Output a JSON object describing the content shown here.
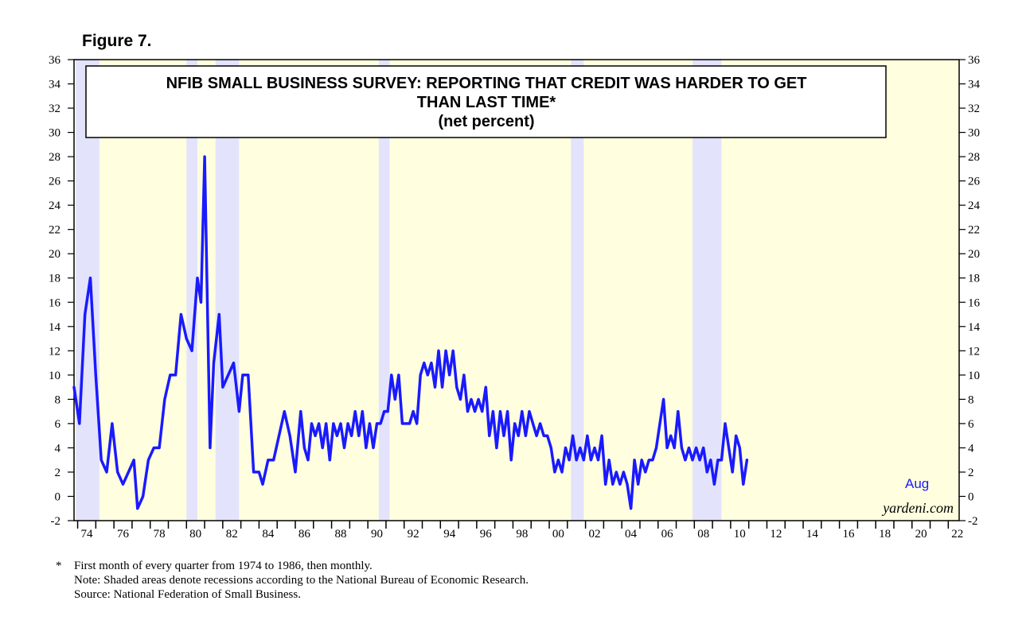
{
  "figure_label": "Figure 7.",
  "chart_data": {
    "type": "line",
    "title_lines": [
      "NFIB SMALL BUSINESS SURVEY: REPORTING THAT CREDIT WAS HARDER TO GET",
      "THAN LAST TIME*",
      "(net percent)"
    ],
    "ylim": [
      -2,
      36
    ],
    "yticks": [
      -2,
      0,
      2,
      4,
      6,
      8,
      10,
      12,
      14,
      16,
      18,
      20,
      22,
      24,
      26,
      28,
      30,
      32,
      34,
      36
    ],
    "xlim": [
      1973.8,
      2022.6
    ],
    "xtick_labels": [
      {
        "year": 1974,
        "label": "74"
      },
      {
        "year": 1976,
        "label": "76"
      },
      {
        "year": 1978,
        "label": "78"
      },
      {
        "year": 1980,
        "label": "80"
      },
      {
        "year": 1982,
        "label": "82"
      },
      {
        "year": 1984,
        "label": "84"
      },
      {
        "year": 1986,
        "label": "86"
      },
      {
        "year": 1988,
        "label": "88"
      },
      {
        "year": 1990,
        "label": "90"
      },
      {
        "year": 1992,
        "label": "92"
      },
      {
        "year": 1994,
        "label": "94"
      },
      {
        "year": 1996,
        "label": "96"
      },
      {
        "year": 1998,
        "label": "98"
      },
      {
        "year": 2000,
        "label": "00"
      },
      {
        "year": 2002,
        "label": "02"
      },
      {
        "year": 2004,
        "label": "04"
      },
      {
        "year": 2006,
        "label": "06"
      },
      {
        "year": 2008,
        "label": "08"
      },
      {
        "year": 2010,
        "label": "10"
      },
      {
        "year": 2012,
        "label": "12"
      },
      {
        "year": 2014,
        "label": "14"
      },
      {
        "year": 2016,
        "label": "16"
      },
      {
        "year": 2018,
        "label": "18"
      },
      {
        "year": 2020,
        "label": "20"
      },
      {
        "year": 2022,
        "label": "22"
      }
    ],
    "recessions": [
      [
        1973.9,
        1975.2
      ],
      [
        1980.0,
        1980.6
      ],
      [
        1981.6,
        1982.9
      ],
      [
        1990.6,
        1991.2
      ],
      [
        2001.2,
        2001.9
      ],
      [
        2007.9,
        2009.5
      ]
    ],
    "series": [
      {
        "name": "Credit harder to get (net percent)",
        "color": "#1a1aff",
        "points": [
          [
            1973.8,
            9
          ],
          [
            1974.1,
            6
          ],
          [
            1974.4,
            15
          ],
          [
            1974.7,
            18
          ],
          [
            1975.0,
            10
          ],
          [
            1975.3,
            3
          ],
          [
            1975.6,
            2
          ],
          [
            1975.9,
            6
          ],
          [
            1976.2,
            2
          ],
          [
            1976.5,
            1
          ],
          [
            1976.8,
            2
          ],
          [
            1977.1,
            3
          ],
          [
            1977.3,
            -1
          ],
          [
            1977.6,
            0
          ],
          [
            1977.9,
            3
          ],
          [
            1978.2,
            4
          ],
          [
            1978.5,
            4
          ],
          [
            1978.8,
            8
          ],
          [
            1979.1,
            10
          ],
          [
            1979.4,
            10
          ],
          [
            1979.7,
            15
          ],
          [
            1980.0,
            13
          ],
          [
            1980.3,
            12
          ],
          [
            1980.6,
            18
          ],
          [
            1980.8,
            16
          ],
          [
            1981.0,
            28
          ],
          [
            1981.3,
            4
          ],
          [
            1981.5,
            11
          ],
          [
            1981.8,
            15
          ],
          [
            1982.0,
            9
          ],
          [
            1982.3,
            10
          ],
          [
            1982.6,
            11
          ],
          [
            1982.9,
            7
          ],
          [
            1983.1,
            10
          ],
          [
            1983.4,
            10
          ],
          [
            1983.7,
            2
          ],
          [
            1984.0,
            2
          ],
          [
            1984.2,
            1
          ],
          [
            1984.5,
            3
          ],
          [
            1984.8,
            3
          ],
          [
            1985.1,
            5
          ],
          [
            1985.4,
            7
          ],
          [
            1985.7,
            5
          ],
          [
            1986.0,
            2
          ],
          [
            1986.3,
            7
          ],
          [
            1986.5,
            4
          ],
          [
            1986.7,
            3
          ],
          [
            1986.9,
            6
          ],
          [
            1987.1,
            5
          ],
          [
            1987.3,
            6
          ],
          [
            1987.5,
            4
          ],
          [
            1987.7,
            6
          ],
          [
            1987.9,
            3
          ],
          [
            1988.1,
            6
          ],
          [
            1988.3,
            5
          ],
          [
            1988.5,
            6
          ],
          [
            1988.7,
            4
          ],
          [
            1988.9,
            6
          ],
          [
            1989.1,
            5
          ],
          [
            1989.3,
            7
          ],
          [
            1989.5,
            5
          ],
          [
            1989.7,
            7
          ],
          [
            1989.9,
            4
          ],
          [
            1990.1,
            6
          ],
          [
            1990.3,
            4
          ],
          [
            1990.5,
            6
          ],
          [
            1990.7,
            6
          ],
          [
            1990.9,
            7
          ],
          [
            1991.1,
            7
          ],
          [
            1991.3,
            10
          ],
          [
            1991.5,
            8
          ],
          [
            1991.7,
            10
          ],
          [
            1991.9,
            6
          ],
          [
            1992.1,
            6
          ],
          [
            1992.3,
            6
          ],
          [
            1992.5,
            7
          ],
          [
            1992.7,
            6
          ],
          [
            1992.9,
            10
          ],
          [
            1993.1,
            11
          ],
          [
            1993.3,
            10
          ],
          [
            1993.5,
            11
          ],
          [
            1993.7,
            9
          ],
          [
            1993.9,
            12
          ],
          [
            1994.1,
            9
          ],
          [
            1994.3,
            12
          ],
          [
            1994.5,
            10
          ],
          [
            1994.7,
            12
          ],
          [
            1994.9,
            9
          ],
          [
            1995.1,
            8
          ],
          [
            1995.3,
            10
          ],
          [
            1995.5,
            7
          ],
          [
            1995.7,
            8
          ],
          [
            1995.9,
            7
          ],
          [
            1996.1,
            8
          ],
          [
            1996.3,
            7
          ],
          [
            1996.5,
            9
          ],
          [
            1996.7,
            5
          ],
          [
            1996.9,
            7
          ],
          [
            1997.1,
            4
          ],
          [
            1997.3,
            7
          ],
          [
            1997.5,
            5
          ],
          [
            1997.7,
            7
          ],
          [
            1997.9,
            3
          ],
          [
            1998.1,
            6
          ],
          [
            1998.3,
            5
          ],
          [
            1998.5,
            7
          ],
          [
            1998.7,
            5
          ],
          [
            1998.9,
            7
          ],
          [
            1999.1,
            6
          ],
          [
            1999.3,
            5
          ],
          [
            1999.5,
            6
          ],
          [
            1999.7,
            5
          ],
          [
            1999.9,
            5
          ],
          [
            2000.1,
            4
          ],
          [
            2000.3,
            2
          ],
          [
            2000.5,
            3
          ],
          [
            2000.7,
            2
          ],
          [
            2000.9,
            4
          ],
          [
            2001.1,
            3
          ],
          [
            2001.3,
            5
          ],
          [
            2001.5,
            3
          ],
          [
            2001.7,
            4
          ],
          [
            2001.9,
            3
          ],
          [
            2002.1,
            5
          ],
          [
            2002.3,
            3
          ],
          [
            2002.5,
            4
          ],
          [
            2002.7,
            3
          ],
          [
            2002.9,
            5
          ],
          [
            2003.1,
            1
          ],
          [
            2003.3,
            3
          ],
          [
            2003.5,
            1
          ],
          [
            2003.7,
            2
          ],
          [
            2003.9,
            1
          ],
          [
            2004.1,
            2
          ],
          [
            2004.3,
            1
          ],
          [
            2004.5,
            -1
          ],
          [
            2004.7,
            3
          ],
          [
            2004.9,
            1
          ],
          [
            2005.1,
            3
          ],
          [
            2005.3,
            2
          ],
          [
            2005.5,
            3
          ],
          [
            2005.7,
            3
          ],
          [
            2005.9,
            4
          ],
          [
            2006.1,
            6
          ],
          [
            2006.3,
            8
          ],
          [
            2006.5,
            4
          ],
          [
            2006.7,
            5
          ],
          [
            2006.9,
            4
          ],
          [
            2007.1,
            7
          ],
          [
            2007.3,
            4
          ],
          [
            2007.5,
            3
          ],
          [
            2007.7,
            4
          ],
          [
            2007.9,
            3
          ],
          [
            2008.1,
            4
          ],
          [
            2008.3,
            3
          ],
          [
            2008.5,
            4
          ],
          [
            2008.7,
            2
          ],
          [
            2008.9,
            3
          ],
          [
            2009.1,
            1
          ],
          [
            2009.3,
            3
          ],
          [
            2009.5,
            3
          ],
          [
            2009.7,
            6
          ],
          [
            2009.9,
            4
          ],
          [
            2010.1,
            2
          ],
          [
            2010.3,
            5
          ],
          [
            2010.5,
            4
          ],
          [
            2010.7,
            1
          ],
          [
            2010.9,
            3
          ]
        ]
      }
    ],
    "end_label": "Aug",
    "watermark": "yardeni.com"
  },
  "footnotes": [
    {
      "mark": "*",
      "text": "First month of every quarter from 1974 to 1986, then monthly."
    },
    {
      "mark": "",
      "text": "Note: Shaded areas denote recessions according to the National Bureau of Economic Research."
    },
    {
      "mark": "",
      "text": "Source: National Federation of Small Business."
    }
  ]
}
